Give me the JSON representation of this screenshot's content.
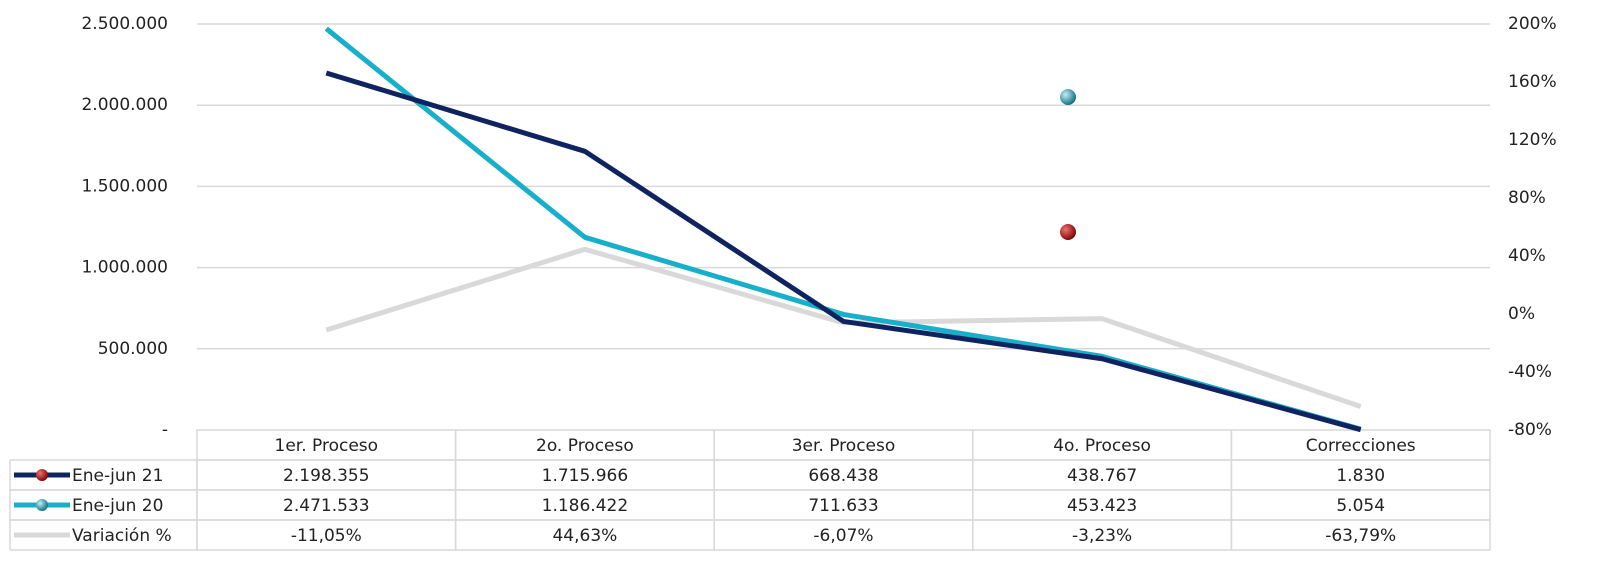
{
  "chart_data": {
    "type": "line",
    "categories": [
      "1er. Proceso",
      "2o. Proceso",
      "3er. Proceso",
      "4o. Proceso",
      "Correcciones"
    ],
    "series": [
      {
        "name": "Ene-jun 21",
        "color": "#0f2361",
        "values": [
          2198355,
          1715966,
          668438,
          438767,
          1830
        ],
        "value_labels": [
          "2.198.355",
          "1.715.966",
          "668.438",
          "438.767",
          "1.830"
        ]
      },
      {
        "name": "Ene-jun 20",
        "color": "#17afc9",
        "values": [
          2471533,
          1186422,
          711633,
          453423,
          5054
        ],
        "value_labels": [
          "2.471.533",
          "1.186.422",
          "711.633",
          "453.423",
          "5.054"
        ]
      },
      {
        "name": "Variación %",
        "color": "#d9d9d9",
        "axis": "y2",
        "values": [
          -11.05,
          44.63,
          -6.07,
          -3.23,
          -63.79
        ],
        "value_labels": [
          "-11,05%",
          "44,63%",
          "-6,07%",
          "-3,23%",
          "-63,79%"
        ]
      }
    ],
    "ylim": [
      0,
      2500000
    ],
    "yticks": [
      {
        "value": 0,
        "label": "-"
      },
      {
        "value": 500000,
        "label": "500.000"
      },
      {
        "value": 1000000,
        "label": "1.000.000"
      },
      {
        "value": 1500000,
        "label": "1.500.000"
      },
      {
        "value": 2000000,
        "label": "2.000.000"
      },
      {
        "value": 2500000,
        "label": "2.500.000"
      }
    ],
    "y2lim": [
      -80,
      200
    ],
    "y2ticks": [
      {
        "value": -80,
        "label": "-80%"
      },
      {
        "value": -40,
        "label": "-40%"
      },
      {
        "value": 0,
        "label": "0%"
      },
      {
        "value": 40,
        "label": "40%"
      },
      {
        "value": 80,
        "label": "80%"
      },
      {
        "value": 120,
        "label": "120%"
      },
      {
        "value": 160,
        "label": "160%"
      },
      {
        "value": 200,
        "label": "200%"
      }
    ],
    "grid": true
  }
}
